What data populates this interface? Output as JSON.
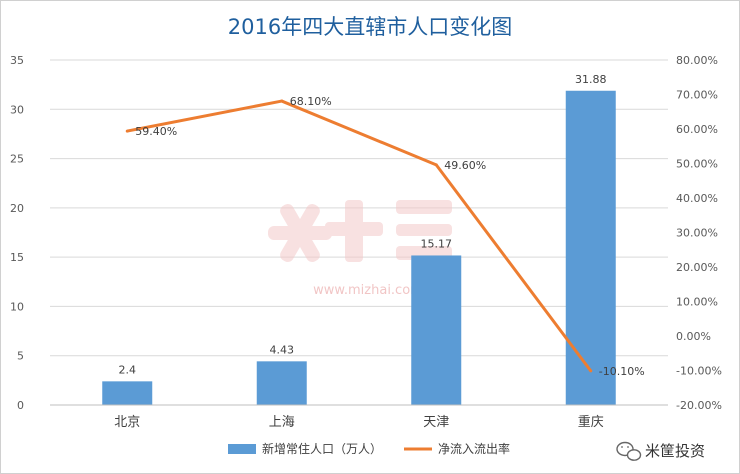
{
  "chart_data": {
    "type": "bar",
    "title": "2016年四大直辖市人口变化图",
    "categories": [
      "北京",
      "上海",
      "天津",
      "重庆"
    ],
    "series": [
      {
        "name": "新增常住人口（万人）",
        "type": "bar",
        "axis": "left",
        "values": [
          2.4,
          4.43,
          15.17,
          31.88
        ],
        "labels": [
          "2.4",
          "4.43",
          "15.17",
          "31.88"
        ],
        "color": "#5b9bd5"
      },
      {
        "name": "净流入流出率",
        "type": "line",
        "axis": "right",
        "values": [
          59.4,
          68.1,
          49.6,
          -10.1
        ],
        "labels": [
          "59.40%",
          "68.10%",
          "49.60%",
          "-10.10%"
        ],
        "color": "#ed7d31"
      }
    ],
    "y_left": {
      "min": 0,
      "max": 35,
      "ticks": [
        "0",
        "5",
        "10",
        "15",
        "20",
        "25",
        "30",
        "35"
      ]
    },
    "y_right": {
      "min": -20,
      "max": 80,
      "ticks": [
        "-20.00%",
        "-10.00%",
        "0.00%",
        "10.00%",
        "20.00%",
        "30.00%",
        "40.00%",
        "50.00%",
        "60.00%",
        "70.00%",
        "80.00%"
      ]
    },
    "grid": true,
    "legend": "bottom"
  },
  "watermark": {
    "url": "www.mizhai.com"
  },
  "brand": {
    "name": "米筐投资",
    "icon": "wechat-icon"
  }
}
